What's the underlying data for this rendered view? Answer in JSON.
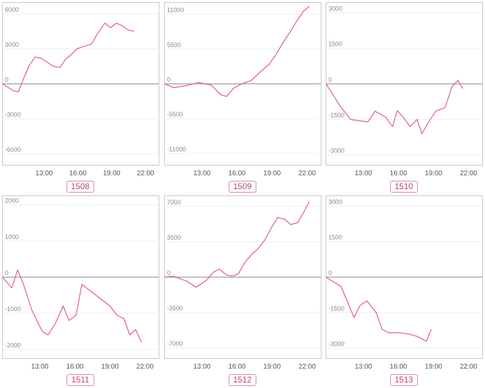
{
  "chart_data": [
    {
      "type": "line",
      "label": "1508",
      "ylim": [
        -6500,
        6500
      ],
      "yticks": [
        6000,
        3000,
        0,
        -3000,
        -6000
      ],
      "ytick_labels": [
        "6000",
        "3000",
        "0",
        "-3000",
        "-6000"
      ],
      "xlim": [
        9.3,
        23.2
      ],
      "xticks": [
        13,
        16,
        19,
        22
      ],
      "xtick_labels": [
        "13:00",
        "16:00",
        "19:00",
        "22:00"
      ],
      "x": [
        9.3,
        10.3,
        10.7,
        11.2,
        11.7,
        12.2,
        12.7,
        13.2,
        13.8,
        14.4,
        14.9,
        15.4,
        15.9,
        16.5,
        17.2,
        17.8,
        18.4,
        18.9,
        19.4,
        19.9,
        20.5,
        21.0
      ],
      "y": [
        0,
        -600,
        -700,
        500,
        1600,
        2300,
        2200,
        1900,
        1500,
        1400,
        2100,
        2500,
        3000,
        3200,
        3400,
        4400,
        5200,
        4800,
        5200,
        5000,
        4600,
        4500
      ],
      "color": "#e06a7e"
    },
    {
      "type": "line",
      "label": "1509",
      "ylim": [
        -12000,
        12000
      ],
      "yticks": [
        11000,
        5500,
        0,
        -5500,
        -11000
      ],
      "ytick_labels": [
        "11000",
        "5500",
        "0",
        "-5500",
        "-11000"
      ],
      "xlim": [
        9.8,
        23.2
      ],
      "xticks": [
        13,
        16,
        19,
        22
      ],
      "xtick_labels": [
        "13:00",
        "16:00",
        "19:00",
        "22:00"
      ],
      "x": [
        9.8,
        10.6,
        11.6,
        12.7,
        13.8,
        14.6,
        15.1,
        15.7,
        16.4,
        17.2,
        18.0,
        18.7,
        19.3,
        19.9,
        20.5,
        21.1,
        21.7,
        22.2
      ],
      "y": [
        0,
        -600,
        -300,
        200,
        -200,
        -1700,
        -2000,
        -700,
        0,
        500,
        1900,
        3000,
        4500,
        6400,
        8100,
        9900,
        11500,
        12300
      ],
      "color": "#e06a7e"
    },
    {
      "type": "line",
      "label": "1510",
      "ylim": [
        -3200,
        3200
      ],
      "yticks": [
        3000,
        1500,
        0,
        -1500,
        -3000
      ],
      "ytick_labels": [
        "3000",
        "1500",
        "0",
        "-1500",
        "-3000"
      ],
      "xlim": [
        9.8,
        23.2
      ],
      "xticks": [
        13,
        16,
        19,
        22
      ],
      "xtick_labels": [
        "13:00",
        "16:00",
        "19:00",
        "22:00"
      ],
      "x": [
        9.8,
        11.1,
        11.9,
        12.5,
        13.4,
        14.0,
        14.9,
        15.5,
        15.9,
        16.4,
        17.0,
        17.6,
        18.0,
        18.6,
        19.2,
        20.0,
        20.6,
        21.1,
        21.5
      ],
      "y": [
        0,
        -1000,
        -1500,
        -1550,
        -1600,
        -1150,
        -1400,
        -1800,
        -1130,
        -1400,
        -1800,
        -1500,
        -2100,
        -1600,
        -1150,
        -1000,
        -100,
        150,
        -200
      ],
      "color": "#e06a7e"
    },
    {
      "type": "line",
      "label": "1511",
      "ylim": [
        -2100,
        2100
      ],
      "yticks": [
        2000,
        1000,
        0,
        -1000,
        -2000
      ],
      "ytick_labels": [
        "2000",
        "1000",
        "0",
        "-1000",
        "-2000"
      ],
      "xlim": [
        9.8,
        23.2
      ],
      "xticks": [
        13,
        16,
        19,
        22
      ],
      "xtick_labels": [
        "13:00",
        "16:00",
        "19:00",
        "22:00"
      ],
      "x": [
        9.8,
        10.6,
        11.1,
        11.6,
        12.3,
        13.2,
        13.7,
        14.3,
        15.0,
        15.5,
        16.1,
        16.6,
        17.4,
        18.2,
        19.0,
        19.6,
        20.2,
        20.7,
        21.2,
        21.7
      ],
      "y": [
        0,
        -300,
        200,
        -200,
        -900,
        -1500,
        -1600,
        -1300,
        -800,
        -1200,
        -1050,
        -200,
        -400,
        -600,
        -800,
        -1050,
        -1150,
        -1600,
        -1450,
        -1800
      ],
      "color": "#e06a7e"
    },
    {
      "type": "line",
      "label": "1512",
      "ylim": [
        -7500,
        7500
      ],
      "yticks": [
        7000,
        3500,
        0,
        -3500,
        -7000
      ],
      "ytick_labels": [
        "7000",
        "3500",
        "0",
        "-3500",
        "-7000"
      ],
      "xlim": [
        9.8,
        23.2
      ],
      "xticks": [
        13,
        16,
        19,
        22
      ],
      "xtick_labels": [
        "13:00",
        "16:00",
        "19:00",
        "22:00"
      ],
      "x": [
        9.8,
        10.5,
        11.7,
        12.5,
        13.4,
        14.0,
        14.5,
        15.1,
        15.6,
        16.1,
        16.7,
        17.3,
        17.8,
        18.4,
        19.0,
        19.5,
        20.1,
        20.6,
        21.2,
        21.7,
        22.2
      ],
      "y": [
        0,
        100,
        -400,
        -1000,
        -300,
        500,
        800,
        200,
        100,
        300,
        1500,
        2300,
        2800,
        3700,
        5000,
        5900,
        5700,
        5200,
        5400,
        6400,
        7500
      ],
      "color": "#e06a7e"
    },
    {
      "type": "line",
      "label": "1513",
      "ylim": [
        -3200,
        3200
      ],
      "yticks": [
        3000,
        1500,
        0,
        -1500,
        -3000
      ],
      "ytick_labels": [
        "3000",
        "1500",
        "0",
        "-1500",
        "-3000"
      ],
      "xlim": [
        9.8,
        23.2
      ],
      "xticks": [
        13,
        16,
        19,
        22
      ],
      "xtick_labels": [
        "13:00",
        "16:00",
        "19:00",
        "22:00"
      ],
      "x": [
        9.8,
        11.1,
        11.6,
        12.2,
        12.7,
        13.3,
        14.1,
        14.6,
        15.2,
        16.1,
        16.9,
        17.6,
        18.4,
        18.8
      ],
      "y": [
        0,
        -400,
        -1000,
        -1700,
        -1200,
        -1000,
        -1500,
        -2200,
        -2350,
        -2350,
        -2400,
        -2500,
        -2700,
        -2200
      ],
      "color": "#e06a7e"
    }
  ]
}
